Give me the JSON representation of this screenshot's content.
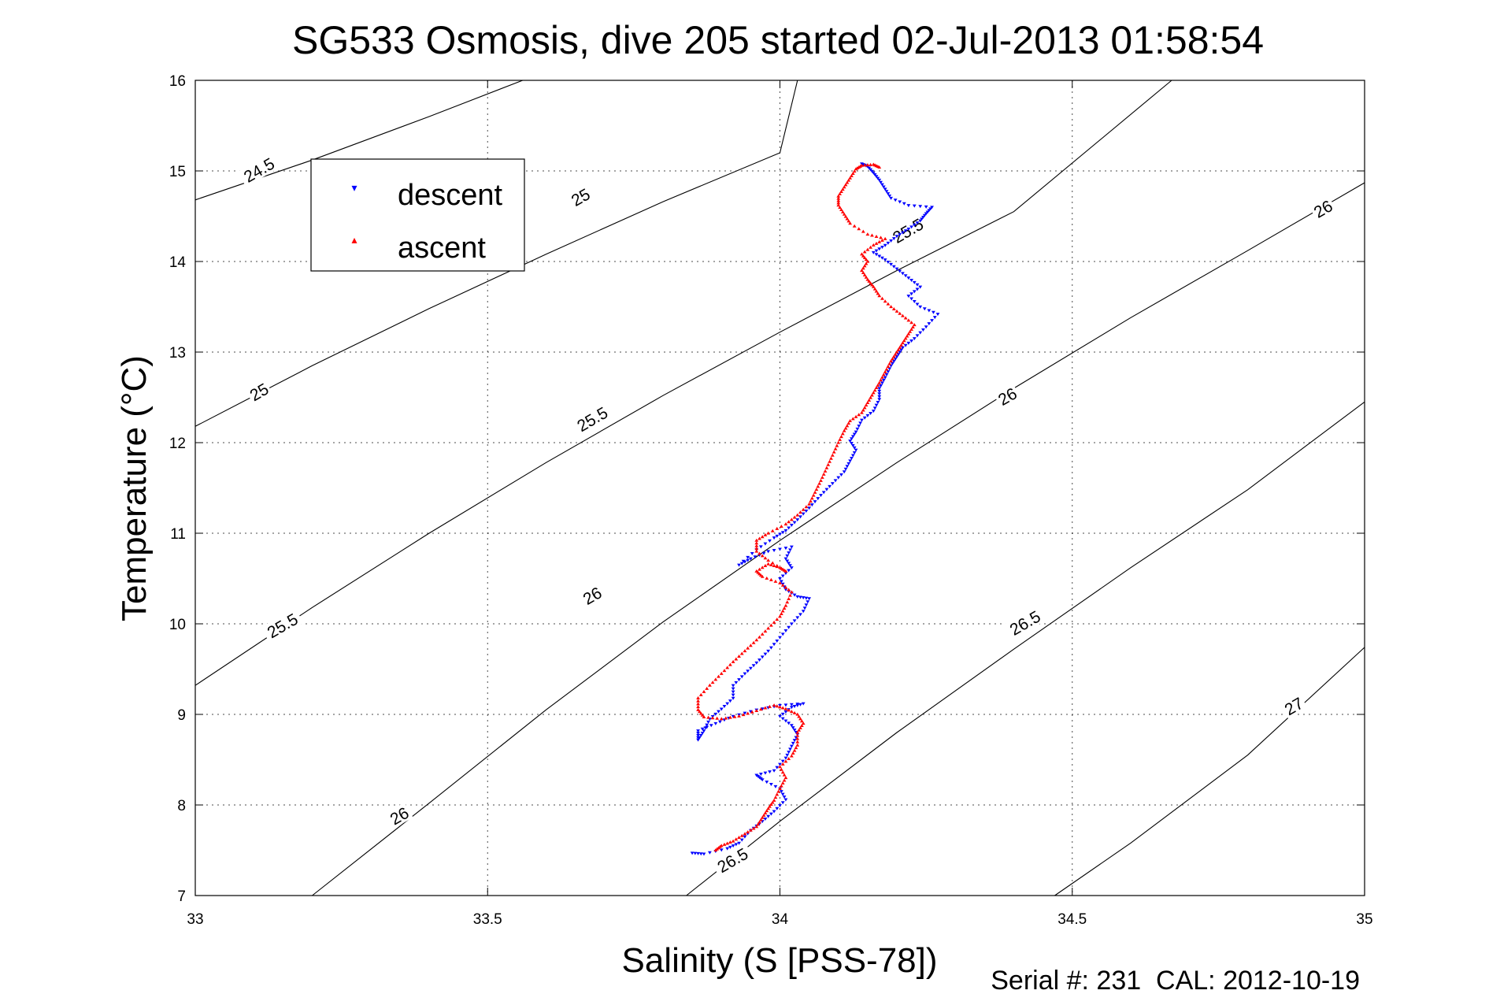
{
  "chart_data": {
    "type": "scatter",
    "title": "SG533 Osmosis, dive 205 started 02-Jul-2013 01:58:54",
    "xlabel": "Salinity (S [PSS-78])",
    "ylabel": "Temperature (°C)",
    "footer": "Serial #: 231  CAL: 2012-10-19",
    "xlim": [
      33,
      35
    ],
    "ylim": [
      7,
      16
    ],
    "xticks": [
      "33",
      "33.5",
      "34",
      "34.5",
      "35"
    ],
    "xtick_values": [
      33,
      33.5,
      34,
      34.5,
      35
    ],
    "yticks": [
      "7",
      "8",
      "9",
      "10",
      "11",
      "12",
      "13",
      "14",
      "15",
      "16"
    ],
    "ytick_values": [
      7,
      8,
      9,
      10,
      11,
      12,
      13,
      14,
      15,
      16
    ],
    "grid": true,
    "legend_position": "top-left",
    "legend": [
      {
        "label": "descent",
        "color": "#0000ff",
        "marker": "▾"
      },
      {
        "label": "ascent",
        "color": "#ff0000",
        "marker": "▴"
      }
    ],
    "series": [
      {
        "name": "descent",
        "color": "#0000ff",
        "points": [
          [
            33.85,
            7.47
          ],
          [
            33.87,
            7.46
          ],
          [
            33.91,
            7.52
          ],
          [
            33.93,
            7.58
          ],
          [
            33.95,
            7.72
          ],
          [
            33.97,
            7.82
          ],
          [
            33.99,
            7.93
          ],
          [
            34.01,
            8.06
          ],
          [
            34.0,
            8.18
          ],
          [
            33.97,
            8.28
          ],
          [
            33.96,
            8.33
          ],
          [
            33.99,
            8.38
          ],
          [
            34.01,
            8.52
          ],
          [
            34.02,
            8.65
          ],
          [
            34.03,
            8.78
          ],
          [
            34.02,
            8.88
          ],
          [
            34.0,
            8.98
          ],
          [
            34.02,
            9.08
          ],
          [
            34.04,
            9.12
          ],
          [
            34.0,
            9.1
          ],
          [
            33.96,
            9.05
          ],
          [
            33.92,
            8.98
          ],
          [
            33.89,
            8.9
          ],
          [
            33.86,
            8.82
          ],
          [
            33.86,
            8.72
          ],
          [
            33.87,
            8.82
          ],
          [
            33.88,
            8.95
          ],
          [
            33.9,
            9.06
          ],
          [
            33.92,
            9.18
          ],
          [
            33.92,
            9.32
          ],
          [
            33.94,
            9.45
          ],
          [
            33.96,
            9.57
          ],
          [
            33.98,
            9.7
          ],
          [
            34.0,
            9.85
          ],
          [
            34.02,
            10.0
          ],
          [
            34.04,
            10.14
          ],
          [
            34.05,
            10.28
          ],
          [
            34.03,
            10.3
          ],
          [
            34.01,
            10.38
          ],
          [
            34.0,
            10.5
          ],
          [
            34.02,
            10.62
          ],
          [
            34.01,
            10.72
          ],
          [
            34.02,
            10.85
          ],
          [
            33.98,
            10.8
          ],
          [
            33.95,
            10.72
          ],
          [
            33.93,
            10.65
          ],
          [
            33.96,
            10.82
          ],
          [
            33.99,
            10.95
          ],
          [
            34.01,
            11.03
          ],
          [
            34.03,
            11.15
          ],
          [
            34.05,
            11.28
          ],
          [
            34.07,
            11.42
          ],
          [
            34.09,
            11.55
          ],
          [
            34.11,
            11.68
          ],
          [
            34.12,
            11.8
          ],
          [
            34.13,
            11.92
          ],
          [
            34.12,
            12.02
          ],
          [
            34.13,
            12.12
          ],
          [
            34.14,
            12.25
          ],
          [
            34.16,
            12.35
          ],
          [
            34.17,
            12.48
          ],
          [
            34.17,
            12.6
          ],
          [
            34.18,
            12.72
          ],
          [
            34.19,
            12.85
          ],
          [
            34.2,
            12.95
          ],
          [
            34.21,
            13.05
          ],
          [
            34.23,
            13.15
          ],
          [
            34.25,
            13.28
          ],
          [
            34.27,
            13.42
          ],
          [
            34.24,
            13.5
          ],
          [
            34.22,
            13.62
          ],
          [
            34.24,
            13.72
          ],
          [
            34.22,
            13.82
          ],
          [
            34.2,
            13.92
          ],
          [
            34.18,
            14.02
          ],
          [
            34.16,
            14.1
          ],
          [
            34.18,
            14.18
          ],
          [
            34.2,
            14.28
          ],
          [
            34.22,
            14.36
          ],
          [
            34.24,
            14.45
          ],
          [
            34.25,
            14.53
          ],
          [
            34.26,
            14.6
          ],
          [
            34.22,
            14.62
          ],
          [
            34.19,
            14.7
          ],
          [
            34.18,
            14.8
          ],
          [
            34.17,
            14.9
          ],
          [
            34.16,
            14.98
          ],
          [
            34.15,
            15.05
          ],
          [
            34.14,
            15.08
          ]
        ]
      },
      {
        "name": "ascent",
        "color": "#ff0000",
        "points": [
          [
            33.89,
            7.5
          ],
          [
            33.9,
            7.55
          ],
          [
            33.92,
            7.6
          ],
          [
            33.94,
            7.68
          ],
          [
            33.96,
            7.76
          ],
          [
            33.97,
            7.86
          ],
          [
            33.98,
            7.96
          ],
          [
            33.99,
            8.05
          ],
          [
            34.0,
            8.18
          ],
          [
            34.01,
            8.3
          ],
          [
            34.0,
            8.42
          ],
          [
            34.02,
            8.54
          ],
          [
            34.03,
            8.66
          ],
          [
            34.03,
            8.8
          ],
          [
            34.04,
            8.9
          ],
          [
            34.03,
            9.0
          ],
          [
            34.01,
            9.06
          ],
          [
            33.99,
            9.1
          ],
          [
            33.96,
            9.04
          ],
          [
            33.93,
            8.98
          ],
          [
            33.9,
            8.95
          ],
          [
            33.87,
            8.97
          ],
          [
            33.86,
            9.05
          ],
          [
            33.86,
            9.18
          ],
          [
            33.88,
            9.32
          ],
          [
            33.9,
            9.45
          ],
          [
            33.92,
            9.58
          ],
          [
            33.94,
            9.7
          ],
          [
            33.96,
            9.82
          ],
          [
            33.98,
            9.95
          ],
          [
            34.0,
            10.08
          ],
          [
            34.01,
            10.2
          ],
          [
            34.02,
            10.35
          ],
          [
            34.0,
            10.45
          ],
          [
            33.97,
            10.52
          ],
          [
            33.96,
            10.58
          ],
          [
            33.98,
            10.66
          ],
          [
            34.0,
            10.62
          ],
          [
            34.01,
            10.58
          ],
          [
            33.98,
            10.7
          ],
          [
            33.96,
            10.8
          ],
          [
            33.96,
            10.92
          ],
          [
            33.98,
            11.0
          ],
          [
            34.01,
            11.1
          ],
          [
            34.03,
            11.2
          ],
          [
            34.05,
            11.32
          ],
          [
            34.06,
            11.45
          ],
          [
            34.07,
            11.58
          ],
          [
            34.08,
            11.72
          ],
          [
            34.09,
            11.86
          ],
          [
            34.1,
            12.0
          ],
          [
            34.11,
            12.13
          ],
          [
            34.12,
            12.24
          ],
          [
            34.14,
            12.33
          ],
          [
            34.15,
            12.44
          ],
          [
            34.16,
            12.55
          ],
          [
            34.17,
            12.66
          ],
          [
            34.18,
            12.78
          ],
          [
            34.19,
            12.9
          ],
          [
            34.2,
            13.0
          ],
          [
            34.21,
            13.1
          ],
          [
            34.22,
            13.2
          ],
          [
            34.23,
            13.3
          ],
          [
            34.21,
            13.4
          ],
          [
            34.19,
            13.5
          ],
          [
            34.17,
            13.62
          ],
          [
            34.16,
            13.72
          ],
          [
            34.15,
            13.8
          ],
          [
            34.14,
            13.9
          ],
          [
            34.15,
            14.0
          ],
          [
            34.14,
            14.08
          ],
          [
            34.16,
            14.18
          ],
          [
            34.18,
            14.25
          ],
          [
            34.15,
            14.3
          ],
          [
            34.12,
            14.42
          ],
          [
            34.11,
            14.52
          ],
          [
            34.1,
            14.62
          ],
          [
            34.1,
            14.72
          ],
          [
            34.11,
            14.82
          ],
          [
            34.12,
            14.92
          ],
          [
            34.13,
            15.02
          ],
          [
            34.14,
            15.06
          ],
          [
            34.16,
            15.07
          ],
          [
            34.17,
            15.04
          ]
        ]
      }
    ],
    "contours": [
      {
        "label": "24.5",
        "points": [
          [
            33.0,
            14.68
          ],
          [
            33.2,
            15.12
          ],
          [
            33.4,
            15.6
          ],
          [
            33.56,
            16.0
          ]
        ]
      },
      {
        "label": "25",
        "points": [
          [
            33.0,
            12.18
          ],
          [
            33.2,
            12.85
          ],
          [
            33.4,
            13.48
          ],
          [
            33.6,
            14.08
          ],
          [
            33.8,
            14.66
          ],
          [
            34.0,
            15.2
          ],
          [
            34.03,
            16.0
          ]
        ]
      },
      {
        "label": "25.5",
        "points": [
          [
            33.0,
            9.32
          ],
          [
            33.2,
            10.18
          ],
          [
            33.4,
            11.0
          ],
          [
            33.6,
            11.78
          ],
          [
            33.8,
            12.52
          ],
          [
            34.0,
            13.22
          ],
          [
            34.2,
            13.9
          ],
          [
            34.4,
            14.55
          ],
          [
            34.67,
            16.0
          ]
        ]
      },
      {
        "label": "26",
        "points": [
          [
            33.2,
            7.0
          ],
          [
            33.4,
            8.02
          ],
          [
            33.6,
            9.05
          ],
          [
            33.8,
            10.02
          ],
          [
            34.0,
            10.92
          ],
          [
            34.2,
            11.78
          ],
          [
            34.4,
            12.6
          ],
          [
            34.6,
            13.38
          ],
          [
            34.8,
            14.12
          ],
          [
            35.0,
            14.87
          ]
        ]
      },
      {
        "label": "26.5",
        "points": [
          [
            33.84,
            7.0
          ],
          [
            34.0,
            7.82
          ],
          [
            34.2,
            8.8
          ],
          [
            34.4,
            9.72
          ],
          [
            34.6,
            10.62
          ],
          [
            34.8,
            11.48
          ],
          [
            35.0,
            12.45
          ]
        ]
      },
      {
        "label": "27",
        "points": [
          [
            34.47,
            7.0
          ],
          [
            34.6,
            7.58
          ],
          [
            34.8,
            8.55
          ],
          [
            35.0,
            9.74
          ]
        ]
      }
    ],
    "contour_labels": [
      {
        "text": "24.5",
        "at": [
          33.11,
          15.0
        ]
      },
      {
        "text": "25",
        "at": [
          33.66,
          14.7
        ]
      },
      {
        "text": "25",
        "at": [
          33.11,
          12.55
        ]
      },
      {
        "text": "25.5",
        "at": [
          33.68,
          12.25
        ]
      },
      {
        "text": "25.5",
        "at": [
          33.15,
          9.97
        ]
      },
      {
        "text": "25.5",
        "at": [
          34.22,
          14.33
        ]
      },
      {
        "text": "26",
        "at": [
          34.93,
          14.57
        ]
      },
      {
        "text": "26",
        "at": [
          34.39,
          12.5
        ]
      },
      {
        "text": "26",
        "at": [
          33.68,
          10.3
        ]
      },
      {
        "text": "26",
        "at": [
          33.35,
          7.87
        ]
      },
      {
        "text": "26.5",
        "at": [
          34.42,
          10.0
        ]
      },
      {
        "text": "26.5",
        "at": [
          33.92,
          7.38
        ]
      },
      {
        "text": "27",
        "at": [
          34.88,
          9.08
        ]
      }
    ]
  }
}
